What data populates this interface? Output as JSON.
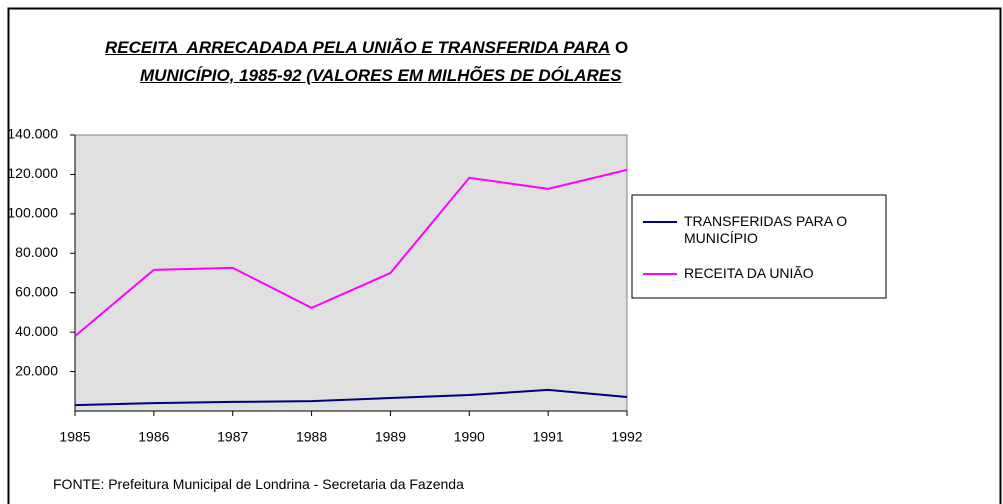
{
  "chart_data": {
    "type": "line",
    "title_line1": "RECEITA  ARRECADADA PELA UNIÃO E TRANSFERIDA PARA",
    "title_line1_end": "O",
    "title_line2": "MUNICÍPIO, 1985-92 (VALORES EM MILHÕES DE DÓLARES",
    "source": "FONTE: Prefeitura Municipal de Londrina - Secretaria da Fazenda",
    "x": [
      1985,
      1986,
      1987,
      1988,
      1989,
      1990,
      1991,
      1992
    ],
    "xlim": [
      1985,
      1992
    ],
    "xticks": [
      1985,
      1986,
      1987,
      1988,
      1989,
      1990,
      1991,
      1992
    ],
    "ylim": [
      0,
      140000
    ],
    "yticks": [
      {
        "value": 20000,
        "label": "20.000"
      },
      {
        "value": 40000,
        "label": "40.000"
      },
      {
        "value": 60000,
        "label": "60.000"
      },
      {
        "value": 80000,
        "label": "80.000"
      },
      {
        "value": 100000,
        "label": "100.000"
      },
      {
        "value": 120000,
        "label": "120.000"
      },
      {
        "value": 140000,
        "label": "140.000"
      }
    ],
    "series": [
      {
        "name": "TRANSFERIDAS PARA O MUNICÍPIO",
        "color": "#000080",
        "values": [
          3000,
          4000,
          4600,
          5000,
          6600,
          8100,
          10700,
          7100
        ]
      },
      {
        "name": "RECEITA DA UNIÃO",
        "color": "#ff00ff",
        "values": [
          38000,
          71600,
          72600,
          52300,
          70000,
          118300,
          112700,
          122300
        ]
      }
    ],
    "legend": "right"
  }
}
